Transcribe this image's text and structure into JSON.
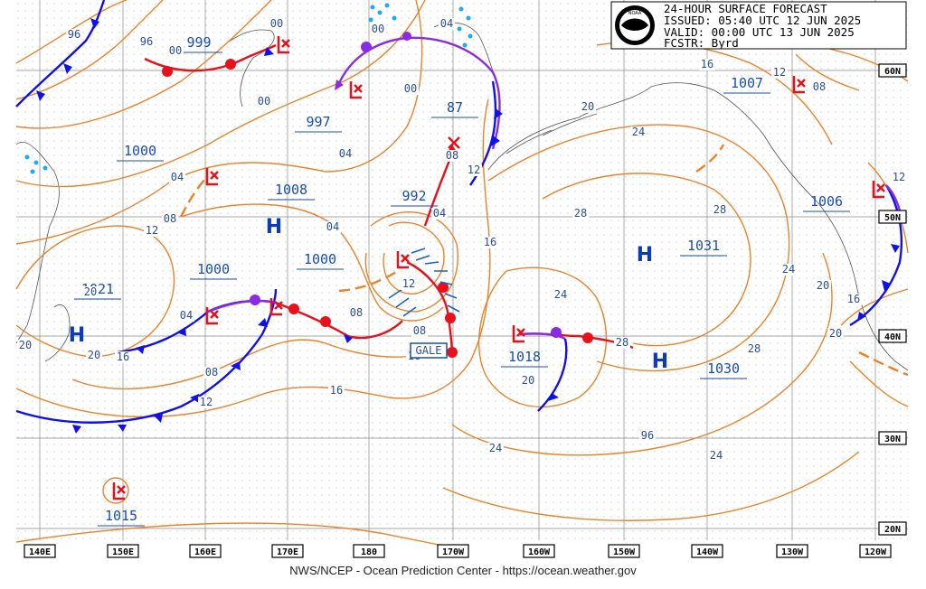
{
  "header": {
    "line1": "24-HOUR SURFACE FORECAST",
    "line2": "ISSUED: 05:40 UTC 12 JUN 2025",
    "line3": "VALID:  00:00 UTC 13 JUN 2025",
    "line4": "FCSTR:  Byrd",
    "logo_text": "NOAA"
  },
  "footer": "NWS/NCEP - Ocean Prediction Center - https://ocean.weather.gov",
  "lon_labels": [
    "140E",
    "150E",
    "160E",
    "170E",
    "180",
    "170W",
    "160W",
    "150W",
    "140W",
    "130W",
    "120W"
  ],
  "lat_labels": [
    "60N",
    "50N",
    "40N",
    "30N",
    "20N"
  ],
  "pressure_labels": [
    "999",
    "997",
    "1000",
    "1008",
    "1000",
    "1000",
    "992",
    "87",
    "1021",
    "1018",
    "1031",
    "1030",
    "1007",
    "1006",
    "1015"
  ],
  "isobar_labels": [
    "96",
    "96",
    "00",
    "00",
    "00",
    "00",
    "00",
    "04",
    "04",
    "04",
    "04",
    "04",
    "04",
    "08",
    "08",
    "08",
    "08",
    "08",
    "08",
    "12",
    "12",
    "12",
    "12",
    "12",
    "16",
    "16",
    "16",
    "16",
    "16",
    "16",
    "20",
    "20",
    "20",
    "20",
    "20",
    "20",
    "20",
    "24",
    "24",
    "24",
    "24",
    "24",
    "28",
    "28",
    "28",
    "28",
    "96",
    "12"
  ],
  "highs": [
    "H",
    "H",
    "H",
    "H"
  ],
  "gale_label": "GALE",
  "colors": {
    "isobar": "#e8832a",
    "cold_front": "#1010ee",
    "warm_front": "#e8101a",
    "occluded": "#8a2be2",
    "grid": "#777777",
    "label": "#1a4db3"
  }
}
